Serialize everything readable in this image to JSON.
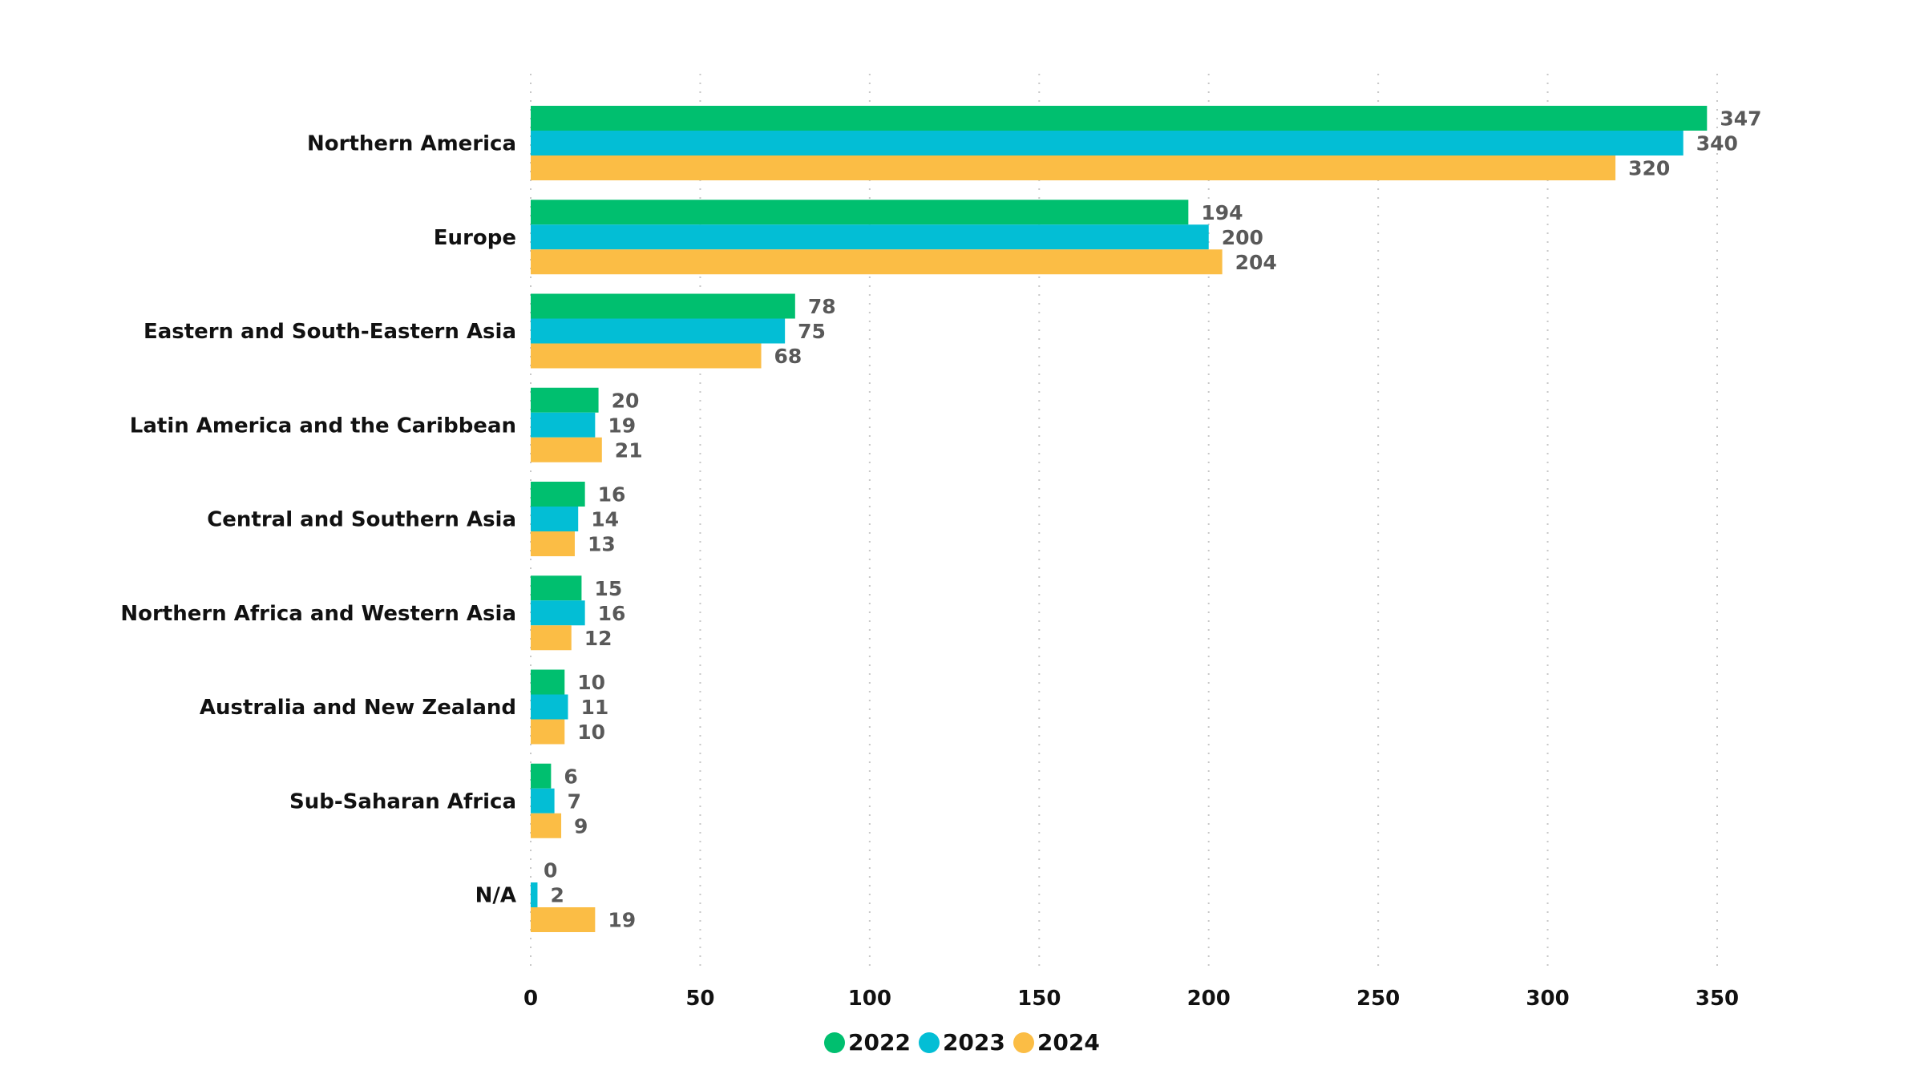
{
  "chart_data": {
    "type": "bar",
    "orientation": "horizontal",
    "title": "",
    "xlabel": "",
    "ylabel": "",
    "xlim": [
      0,
      350
    ],
    "x_ticks": [
      0,
      50,
      100,
      150,
      200,
      250,
      300,
      350
    ],
    "grid": "vertical dotted",
    "legend_position": "bottom-center",
    "categories": [
      "Northern America",
      "Europe",
      "Eastern and South-Eastern Asia",
      "Latin America and the Caribbean",
      "Central and Southern Asia",
      "Northern Africa and Western Asia",
      "Australia and New Zealand",
      "Sub-Saharan Africa",
      "N/A"
    ],
    "series": [
      {
        "name": "2022",
        "color": "#00BF6F",
        "values": [
          347,
          194,
          78,
          20,
          16,
          15,
          10,
          6,
          0
        ]
      },
      {
        "name": "2023",
        "color": "#03BED5",
        "values": [
          340,
          200,
          75,
          19,
          14,
          16,
          11,
          7,
          2
        ]
      },
      {
        "name": "2024",
        "color": "#FBBD45",
        "values": [
          320,
          204,
          68,
          21,
          13,
          12,
          10,
          9,
          19
        ]
      }
    ]
  }
}
